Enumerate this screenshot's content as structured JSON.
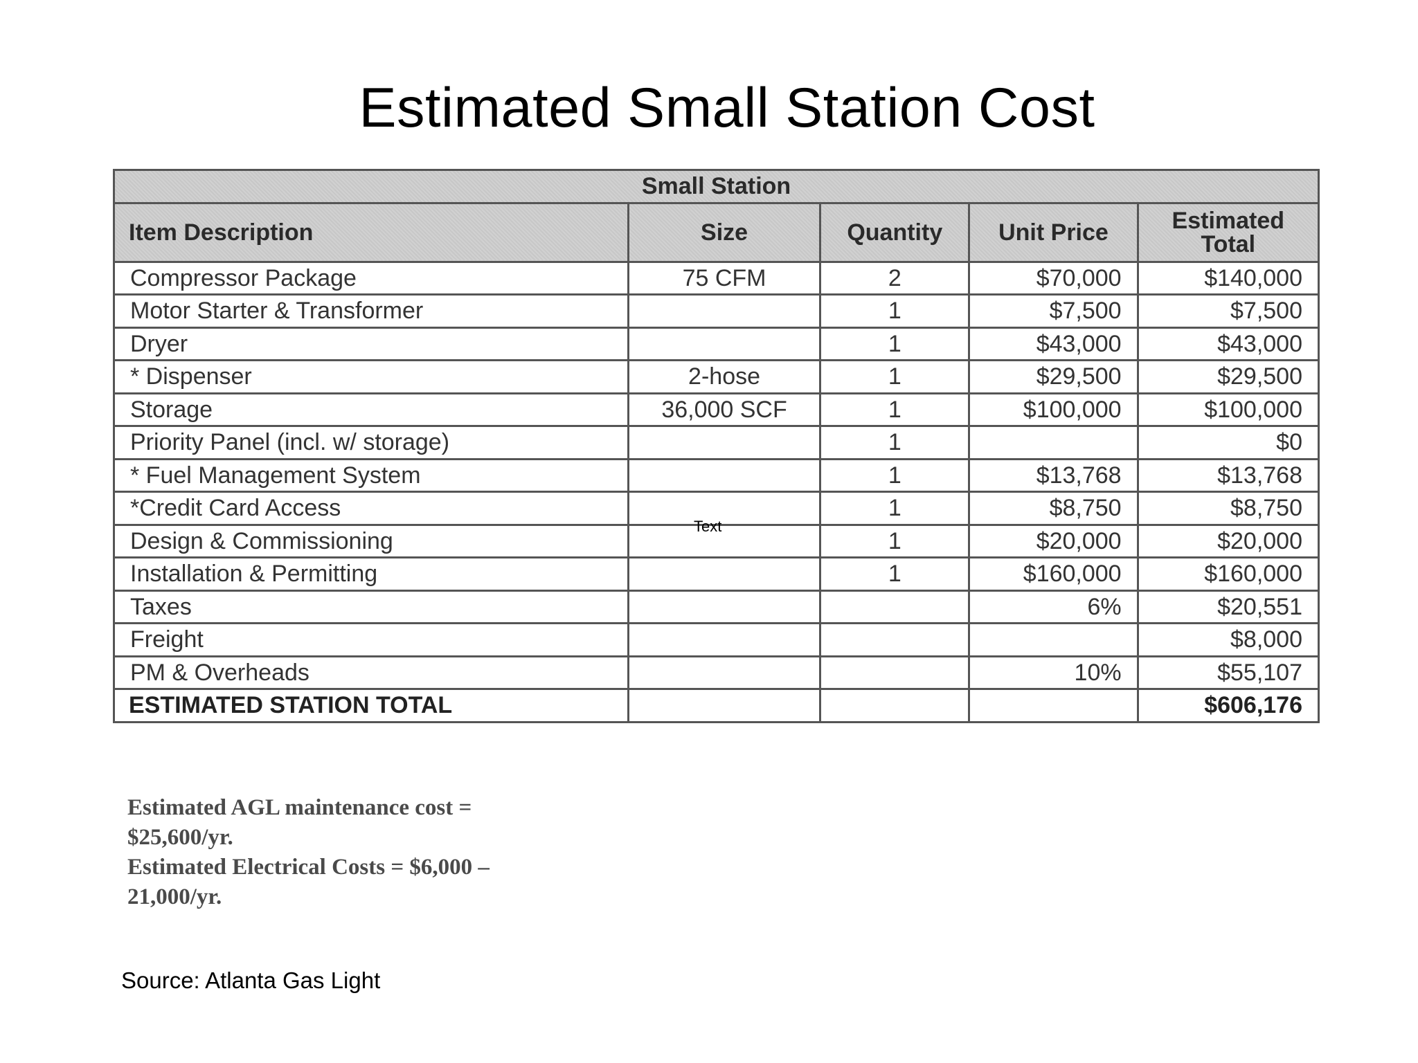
{
  "title": "Estimated Small Station Cost",
  "table": {
    "banner": "Small Station",
    "headers": [
      "Item Description",
      "Size",
      "Quantity",
      "Unit Price",
      "Estimated Total"
    ],
    "rows": [
      {
        "item": "Compressor Package",
        "size": "75 CFM",
        "quantity": "2",
        "unit_price": "$70,000",
        "total": "$140,000"
      },
      {
        "item": "Motor Starter & Transformer",
        "size": "",
        "quantity": "1",
        "unit_price": "$7,500",
        "total": "$7,500"
      },
      {
        "item": "Dryer",
        "size": "",
        "quantity": "1",
        "unit_price": "$43,000",
        "total": "$43,000"
      },
      {
        "item": "* Dispenser",
        "size": "2-hose",
        "quantity": "1",
        "unit_price": "$29,500",
        "total": "$29,500"
      },
      {
        "item": "Storage",
        "size": "36,000 SCF",
        "quantity": "1",
        "unit_price": "$100,000",
        "total": "$100,000"
      },
      {
        "item": "Priority Panel (incl. w/ storage)",
        "size": "",
        "quantity": "1",
        "unit_price": "",
        "total": "$0"
      },
      {
        "item": "* Fuel Management System",
        "size": "",
        "quantity": "1",
        "unit_price": "$13,768",
        "total": "$13,768"
      },
      {
        "item": "*Credit Card Access",
        "size": "",
        "quantity": "1",
        "unit_price": "$8,750",
        "total": "$8,750"
      },
      {
        "item": "Design & Commissioning",
        "size": "",
        "quantity": "1",
        "unit_price": "$20,000",
        "total": "$20,000"
      },
      {
        "item": "Installation & Permitting",
        "size": "",
        "quantity": "1",
        "unit_price": "$160,000",
        "total": "$160,000"
      },
      {
        "item": "Taxes",
        "size": "",
        "quantity": "",
        "unit_price": "6%",
        "total": "$20,551"
      },
      {
        "item": "Freight",
        "size": "",
        "quantity": "",
        "unit_price": "",
        "total": "$8,000"
      },
      {
        "item": "PM & Overheads",
        "size": "",
        "quantity": "",
        "unit_price": "10%",
        "total": "$55,107"
      }
    ],
    "total_row": {
      "label": "ESTIMATED STATION TOTAL",
      "total": "$606,176"
    }
  },
  "floating_text": "Text",
  "notes": [
    "Estimated AGL maintenance cost =",
    "$25,600/yr.",
    "Estimated Electrical Costs = $6,000 –",
    "21,000/yr."
  ],
  "source": "Source: Atlanta Gas Light"
}
